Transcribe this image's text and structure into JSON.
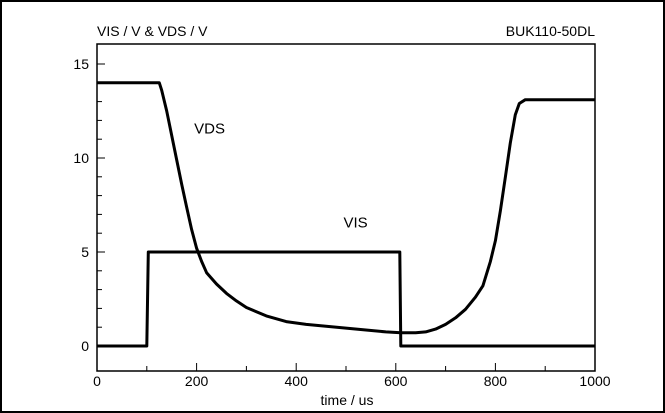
{
  "chart_data": {
    "type": "line",
    "title_left": "VIS / V & VDS / V",
    "title_right": "BUK110-50DL",
    "xlabel": "time / us",
    "ylabel": "",
    "xlim": [
      0,
      1000
    ],
    "ylim": [
      0,
      15
    ],
    "x_ticks": [
      0,
      200,
      400,
      600,
      800,
      1000
    ],
    "y_ticks": [
      0,
      5,
      10,
      15
    ],
    "grid": false,
    "series": [
      {
        "name": "VDS",
        "points": [
          [
            0,
            14.0
          ],
          [
            125,
            14.0
          ],
          [
            130,
            13.6
          ],
          [
            140,
            12.5
          ],
          [
            150,
            11.2
          ],
          [
            160,
            9.9
          ],
          [
            170,
            8.6
          ],
          [
            180,
            7.4
          ],
          [
            190,
            6.2
          ],
          [
            200,
            5.2
          ],
          [
            210,
            4.5
          ],
          [
            220,
            3.9
          ],
          [
            240,
            3.3
          ],
          [
            260,
            2.8
          ],
          [
            280,
            2.4
          ],
          [
            300,
            2.05
          ],
          [
            340,
            1.6
          ],
          [
            380,
            1.3
          ],
          [
            420,
            1.15
          ],
          [
            460,
            1.05
          ],
          [
            500,
            0.95
          ],
          [
            540,
            0.85
          ],
          [
            580,
            0.75
          ],
          [
            610,
            0.7
          ],
          [
            640,
            0.7
          ],
          [
            660,
            0.75
          ],
          [
            680,
            0.9
          ],
          [
            700,
            1.15
          ],
          [
            720,
            1.5
          ],
          [
            740,
            1.95
          ],
          [
            760,
            2.6
          ],
          [
            775,
            3.2
          ],
          [
            790,
            4.5
          ],
          [
            800,
            5.6
          ],
          [
            810,
            7.2
          ],
          [
            820,
            9.0
          ],
          [
            830,
            10.8
          ],
          [
            840,
            12.3
          ],
          [
            848,
            12.9
          ],
          [
            860,
            13.1
          ],
          [
            1000,
            13.1
          ]
        ]
      },
      {
        "name": "VIS",
        "points": [
          [
            0,
            0
          ],
          [
            100,
            0
          ],
          [
            103,
            5
          ],
          [
            608,
            5
          ],
          [
            610,
            0
          ],
          [
            1000,
            0
          ]
        ]
      }
    ],
    "annotations": [
      {
        "text": "VDS",
        "x": 195,
        "y": 11.3
      },
      {
        "text": "VIS",
        "x": 495,
        "y": 6.3
      }
    ]
  }
}
